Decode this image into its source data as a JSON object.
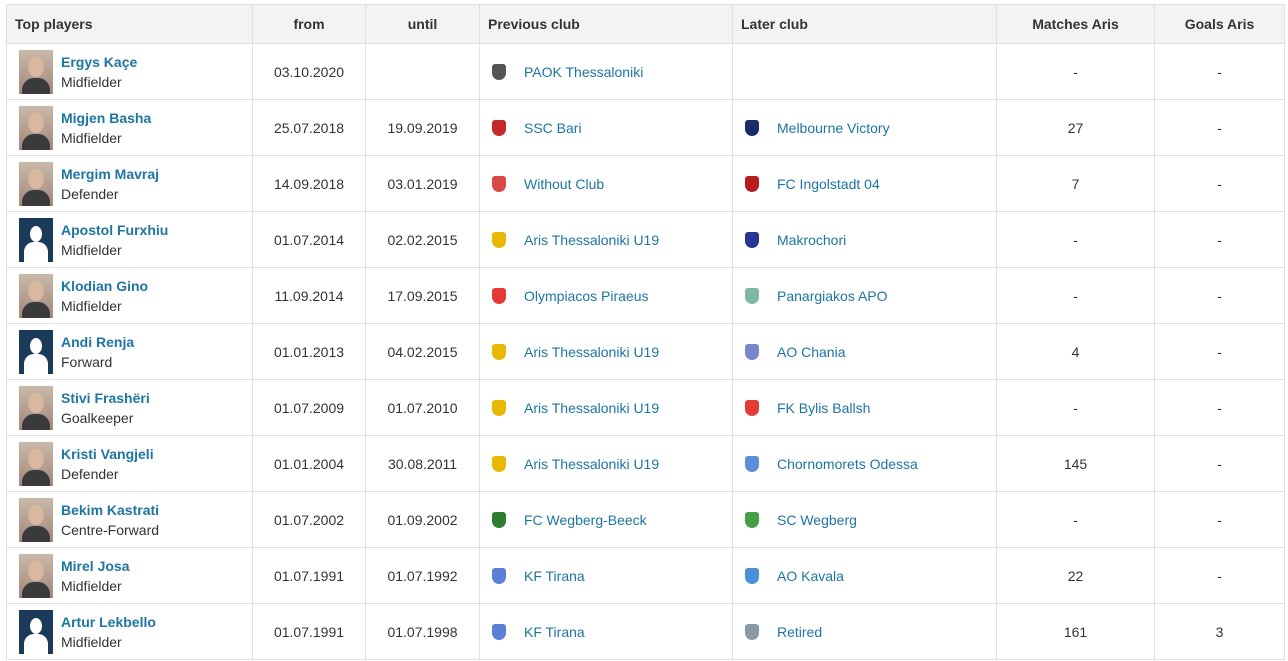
{
  "headers": {
    "player": "Top players",
    "from": "from",
    "until": "until",
    "prev_club": "Previous club",
    "later_club": "Later club",
    "matches": "Matches Aris",
    "goals": "Goals Aris"
  },
  "colors": {
    "link": "#1d75a3",
    "header_bg": "#f3f3f3",
    "border": "#e0e0e0"
  },
  "rows": [
    {
      "name": "Ergys Kaçe",
      "position": "Midfielder",
      "avatar": "photo",
      "from": "03.10.2020",
      "until": "",
      "prev": "PAOK Thessaloniki",
      "prev_icon": "paok-crest-icon",
      "prev_color": "#555555",
      "later": "",
      "later_icon": "",
      "later_color": "",
      "matches": "-",
      "goals": "-"
    },
    {
      "name": "Migjen Basha",
      "position": "Midfielder",
      "avatar": "photo",
      "from": "25.07.2018",
      "until": "19.09.2019",
      "prev": "SSC Bari",
      "prev_icon": "bari-crest-icon",
      "prev_color": "#c62828",
      "later": "Melbourne Victory",
      "later_icon": "melbourne-victory-crest-icon",
      "later_color": "#1a2a6c",
      "matches": "27",
      "goals": "-"
    },
    {
      "name": "Mergim Mavraj",
      "position": "Defender",
      "avatar": "photo",
      "from": "14.09.2018",
      "until": "03.01.2019",
      "prev": "Without Club",
      "prev_icon": "without-club-icon",
      "prev_color": "#d94848",
      "later": "FC Ingolstadt 04",
      "later_icon": "ingolstadt-crest-icon",
      "later_color": "#b71c1c",
      "matches": "7",
      "goals": "-"
    },
    {
      "name": "Apostol Furxhiu",
      "position": "Midfielder",
      "avatar": "blank",
      "from": "01.07.2014",
      "until": "02.02.2015",
      "prev": "Aris Thessaloniki U19",
      "prev_icon": "aris-crest-icon",
      "prev_color": "#e6b800",
      "later": "Makrochori",
      "later_icon": "makrochori-crest-icon",
      "later_color": "#283593",
      "matches": "-",
      "goals": "-"
    },
    {
      "name": "Klodian Gino",
      "position": "Midfielder",
      "avatar": "photo",
      "from": "11.09.2014",
      "until": "17.09.2015",
      "prev": "Olympiacos Piraeus",
      "prev_icon": "olympiacos-crest-icon",
      "prev_color": "#e53935",
      "later": "Panargiakos APO",
      "later_icon": "panargiakos-crest-icon",
      "later_color": "#7fb8a0",
      "matches": "-",
      "goals": "-"
    },
    {
      "name": "Andi Renja",
      "position": "Forward",
      "avatar": "blank",
      "from": "01.01.2013",
      "until": "04.02.2015",
      "prev": "Aris Thessaloniki U19",
      "prev_icon": "aris-crest-icon",
      "prev_color": "#e6b800",
      "later": "AO Chania",
      "later_icon": "ao-chania-crest-icon",
      "later_color": "#7986cb",
      "matches": "4",
      "goals": "-"
    },
    {
      "name": "Stivi Frashëri",
      "position": "Goalkeeper",
      "avatar": "photo",
      "from": "01.07.2009",
      "until": "01.07.2010",
      "prev": "Aris Thessaloniki U19",
      "prev_icon": "aris-crest-icon",
      "prev_color": "#e6b800",
      "later": "FK Bylis Ballsh",
      "later_icon": "bylis-crest-icon",
      "later_color": "#e53935",
      "matches": "-",
      "goals": "-"
    },
    {
      "name": "Kristi Vangjeli",
      "position": "Defender",
      "avatar": "photo",
      "from": "01.01.2004",
      "until": "30.08.2011",
      "prev": "Aris Thessaloniki U19",
      "prev_icon": "aris-crest-icon",
      "prev_color": "#e6b800",
      "later": "Chornomorets Odessa",
      "later_icon": "chornomorets-crest-icon",
      "later_color": "#5c8fd6",
      "matches": "145",
      "goals": "-"
    },
    {
      "name": "Bekim Kastrati",
      "position": "Centre-Forward",
      "avatar": "photo",
      "from": "01.07.2002",
      "until": "01.09.2002",
      "prev": "FC Wegberg-Beeck",
      "prev_icon": "wegberg-beeck-crest-icon",
      "prev_color": "#2e7d32",
      "later": "SC Wegberg",
      "later_icon": "sc-wegberg-crest-icon",
      "later_color": "#43a047",
      "matches": "-",
      "goals": "-"
    },
    {
      "name": "Mirel Josa",
      "position": "Midfielder",
      "avatar": "photo",
      "from": "01.07.1991",
      "until": "01.07.1992",
      "prev": "KF Tirana",
      "prev_icon": "kf-tirana-crest-icon",
      "prev_color": "#5c7fd6",
      "later": "AO Kavala",
      "later_icon": "ao-kavala-crest-icon",
      "later_color": "#4a90d9",
      "matches": "22",
      "goals": "-"
    },
    {
      "name": "Artur Lekbello",
      "position": "Midfielder",
      "avatar": "blank",
      "from": "01.07.1991",
      "until": "01.07.1998",
      "prev": "KF Tirana",
      "prev_icon": "kf-tirana-crest-icon",
      "prev_color": "#5c7fd6",
      "later": "Retired",
      "later_icon": "retired-icon",
      "later_color": "#8a9ba8",
      "matches": "161",
      "goals": "3"
    }
  ]
}
